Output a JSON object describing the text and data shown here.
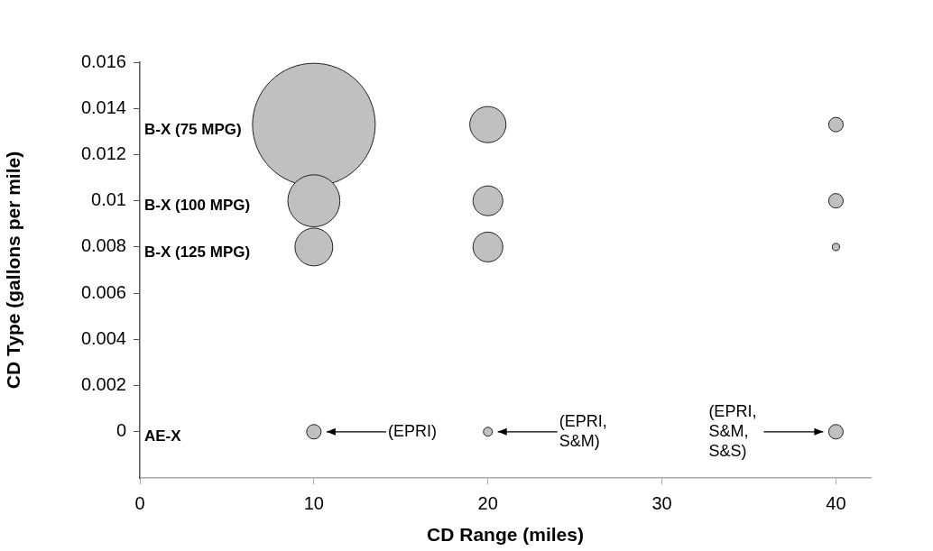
{
  "chart_data": {
    "type": "bubble",
    "xlabel": "CD Range (miles)",
    "ylabel": "CD Type (gallons per mile)",
    "x": [
      10,
      10,
      10,
      20,
      20,
      20,
      40,
      40,
      40,
      10,
      20,
      40
    ],
    "values": [
      0.0133,
      0.01,
      0.008,
      0.0133,
      0.01,
      0.008,
      0.0133,
      0.01,
      0.008,
      0,
      0,
      0
    ],
    "sizes": [
      1,
      0.18,
      0.095,
      0.087,
      0.059,
      0.059,
      0.014,
      0.014,
      0.0035,
      0.014,
      0.0054,
      0.014
    ],
    "color": "#c0c0c0",
    "xlim": [
      0,
      42
    ],
    "xticks": [
      0,
      10,
      20,
      30,
      40
    ],
    "ylim": [
      -0.002,
      0.016
    ],
    "yticks": [
      0,
      0.002,
      0.004,
      0.006,
      0.008,
      0.01,
      0.012,
      0.014,
      0.016
    ],
    "annotations": [
      "B-X (75 MPG)",
      "B-X (100 MPG)",
      "B-X (125 MPG)",
      "AE-X",
      "(EPRI)",
      "(EPRI,\nS&M)",
      "(EPRI,\nS&M,\nS&S)"
    ]
  }
}
